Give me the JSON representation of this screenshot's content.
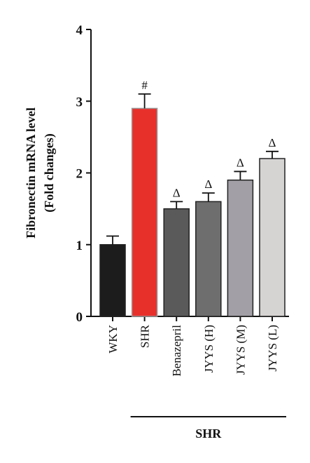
{
  "chart_data": {
    "type": "bar",
    "ylabel_line1": "Fibronectin mRNA level",
    "ylabel_line2": "(Fold changes)",
    "ylim": [
      0,
      4
    ],
    "yticks": [
      0,
      1,
      2,
      3,
      4
    ],
    "categories": [
      "WKY",
      "SHR",
      "Benazepril",
      "JYYS (H)",
      "JYYS (M)",
      "JYYS (L)"
    ],
    "values": [
      1.0,
      2.9,
      1.5,
      1.6,
      1.9,
      2.2
    ],
    "errors": [
      0.12,
      0.2,
      0.1,
      0.12,
      0.12,
      0.1
    ],
    "annotations": [
      "",
      "#",
      "Δ",
      "Δ",
      "Δ",
      "Δ"
    ],
    "colors": [
      "#1c1c1c",
      "#e8302b",
      "#5a5a5a",
      "#6e6e6e",
      "#a29fa6",
      "#d6d3d3"
    ],
    "group_label": "SHR",
    "grid": false,
    "legend": false
  }
}
